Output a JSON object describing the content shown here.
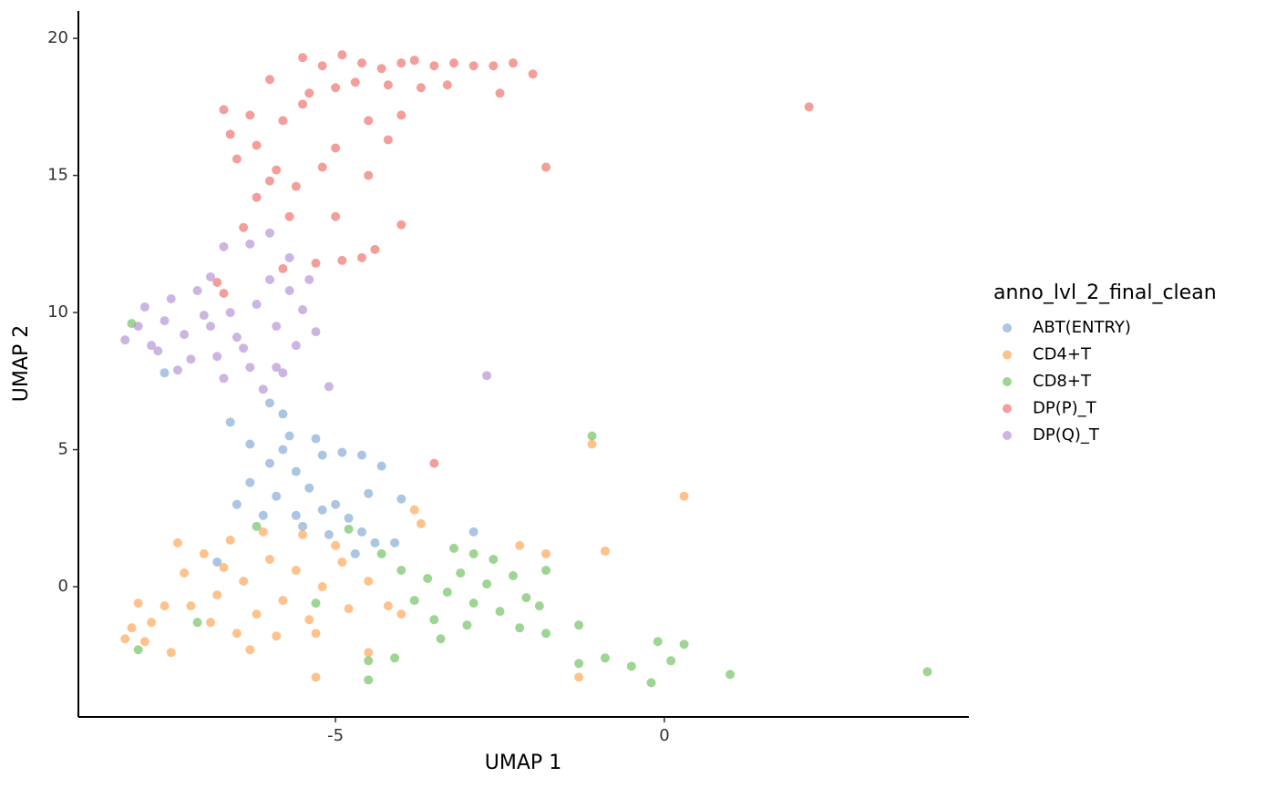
{
  "chart_data": {
    "type": "scatter",
    "x_label": "UMAP 1",
    "y_label": "UMAP 2",
    "legend_title": "anno_lvl_2_final_clean",
    "legend": "right",
    "xlim": [
      -8.91,
      4.63
    ],
    "ylim": [
      -4.75,
      21.0
    ],
    "xticks": [
      -5,
      0
    ],
    "yticks": [
      0,
      5,
      10,
      15,
      20
    ],
    "series": [
      {
        "name": "ABT(ENTRY)",
        "color": "#7ea6d3",
        "x": [
          -6.5,
          -6.3,
          -6.0,
          -5.8,
          -5.6,
          -5.4,
          -5.2,
          -5.0,
          -4.8,
          -4.6,
          -4.4,
          -5.9,
          -6.1,
          -5.5,
          -5.2,
          -4.9,
          -4.6,
          -4.5,
          -5.7,
          -6.6,
          -6.0,
          -5.8,
          -4.3,
          -4.0,
          -2.9,
          -4.1,
          -5.6,
          -6.3,
          -5.3,
          -6.8,
          -7.6,
          -5.1,
          -4.7
        ],
        "values": [
          3.0,
          3.8,
          4.5,
          5.0,
          4.2,
          3.6,
          4.8,
          3.0,
          2.5,
          2.0,
          1.6,
          3.3,
          2.6,
          2.2,
          2.8,
          4.9,
          4.8,
          3.4,
          5.5,
          6.0,
          6.7,
          6.3,
          4.4,
          3.2,
          2.0,
          1.6,
          2.6,
          5.2,
          5.4,
          0.9,
          7.8,
          1.9,
          1.2
        ]
      },
      {
        "name": "CD4+T",
        "color": "#fda350",
        "x": [
          -7.3,
          -7.0,
          -6.8,
          -6.6,
          -6.4,
          -6.2,
          -6.0,
          -5.8,
          -5.6,
          -5.4,
          -5.2,
          -5.0,
          -4.8,
          -6.9,
          -7.2,
          -7.4,
          -6.5,
          -6.1,
          -5.5,
          -5.3,
          -4.5,
          -4.2,
          -4.0,
          -8.1,
          -8.2,
          -7.9,
          -7.8,
          -8.0,
          -7.5,
          -6.3,
          -5.3,
          -4.5,
          -3.8,
          -3.7,
          -2.2,
          -1.8,
          -0.9,
          0.3,
          -1.1,
          -1.3,
          -7.6,
          -6.7,
          -5.9,
          -4.9
        ],
        "values": [
          0.5,
          1.2,
          -0.3,
          1.7,
          0.2,
          -1.0,
          1.0,
          -0.5,
          0.6,
          -1.2,
          0.0,
          1.5,
          -0.8,
          -1.3,
          -0.7,
          1.6,
          -1.7,
          2.0,
          1.9,
          -1.7,
          0.2,
          -0.7,
          -1.0,
          -1.5,
          -1.9,
          -2.0,
          -1.3,
          -0.6,
          -2.4,
          -2.3,
          -3.3,
          -2.4,
          2.8,
          2.3,
          1.5,
          1.2,
          1.3,
          3.3,
          5.2,
          -3.3,
          -0.7,
          0.7,
          -1.8,
          0.9
        ]
      },
      {
        "name": "CD8+T",
        "color": "#6cbf5b",
        "x": [
          -3.6,
          -3.3,
          -3.1,
          -2.9,
          -2.7,
          -2.5,
          -2.3,
          -2.1,
          -3.5,
          -3.0,
          -2.6,
          -2.9,
          -3.8,
          -4.0,
          -4.3,
          -1.9,
          -1.8,
          -1.8,
          -2.2,
          -3.2,
          -3.4,
          -4.5,
          -4.5,
          -4.1,
          -1.3,
          -1.3,
          -0.9,
          -0.5,
          -0.2,
          -0.1,
          0.1,
          0.3,
          1.0,
          4.0,
          -1.1,
          -7.1,
          -8.0,
          -8.1,
          -6.2,
          -5.3,
          -4.8
        ],
        "values": [
          0.3,
          -0.2,
          0.5,
          -0.6,
          0.1,
          -0.9,
          0.4,
          -0.4,
          -1.2,
          -1.4,
          1.0,
          1.2,
          -0.5,
          0.6,
          1.2,
          -0.7,
          0.6,
          -1.7,
          -1.5,
          1.4,
          -1.9,
          -2.7,
          -3.4,
          -2.6,
          -1.4,
          -2.8,
          -2.6,
          -2.9,
          -3.5,
          -2.0,
          -2.7,
          -2.1,
          -3.2,
          -3.1,
          5.5,
          -1.3,
          -2.3,
          9.6,
          2.2,
          -0.6,
          2.1
        ]
      },
      {
        "name": "DP(P)_T",
        "color": "#ec6a66",
        "x": [
          -5.5,
          -5.2,
          -4.9,
          -4.6,
          -4.3,
          -4.0,
          -3.8,
          -3.5,
          -3.2,
          -2.9,
          -2.6,
          -2.3,
          -2.0,
          -5.0,
          -5.4,
          -4.7,
          -4.2,
          -3.7,
          -3.3,
          -2.5,
          -6.0,
          -6.3,
          -5.8,
          -5.5,
          -4.5,
          -4.0,
          -6.6,
          -6.2,
          -6.5,
          -5.9,
          -6.0,
          -5.2,
          -4.5,
          -5.6,
          -6.2,
          -5.7,
          -5.0,
          -4.0,
          -4.4,
          -4.6,
          -4.9,
          -5.3,
          -5.8,
          -6.4,
          -6.8,
          -6.7,
          2.2,
          -1.8,
          -3.5,
          -6.7,
          -5.0,
          -4.2
        ],
        "values": [
          19.3,
          19.0,
          19.4,
          19.1,
          18.9,
          19.1,
          19.2,
          19.0,
          19.1,
          19.0,
          19.0,
          19.1,
          18.7,
          18.2,
          18.0,
          18.4,
          18.3,
          18.2,
          18.3,
          18.0,
          18.5,
          17.2,
          17.0,
          17.6,
          17.0,
          17.2,
          16.5,
          16.1,
          15.6,
          15.2,
          14.8,
          15.3,
          15.0,
          14.6,
          14.2,
          13.5,
          13.5,
          13.2,
          12.3,
          12.0,
          11.9,
          11.8,
          11.6,
          13.1,
          11.1,
          10.7,
          17.5,
          15.3,
          4.5,
          17.4,
          16.0,
          16.3
        ]
      },
      {
        "name": "DP(Q)_T",
        "color": "#b18fd1",
        "x": [
          -8.2,
          -8.0,
          -7.9,
          -7.6,
          -7.5,
          -7.7,
          -7.3,
          -7.1,
          -6.9,
          -7.0,
          -6.8,
          -6.6,
          -6.5,
          -6.3,
          -6.7,
          -6.2,
          -6.0,
          -5.9,
          -5.7,
          -5.6,
          -5.5,
          -5.3,
          -5.8,
          -6.1,
          -7.4,
          -6.0,
          -6.3,
          -6.7,
          -5.7,
          -5.1,
          -2.7,
          -5.4,
          -7.8,
          -6.4,
          -6.9,
          -5.9,
          -7.2
        ],
        "values": [
          9.0,
          9.5,
          10.2,
          9.7,
          10.5,
          8.6,
          9.2,
          10.8,
          11.3,
          9.9,
          8.4,
          10.0,
          9.1,
          8.0,
          7.6,
          10.3,
          11.2,
          9.5,
          10.8,
          8.8,
          10.1,
          9.3,
          7.8,
          7.2,
          7.9,
          12.9,
          12.5,
          12.4,
          12.0,
          7.3,
          7.7,
          11.2,
          8.8,
          8.7,
          9.5,
          8.0,
          8.3
        ]
      }
    ]
  }
}
